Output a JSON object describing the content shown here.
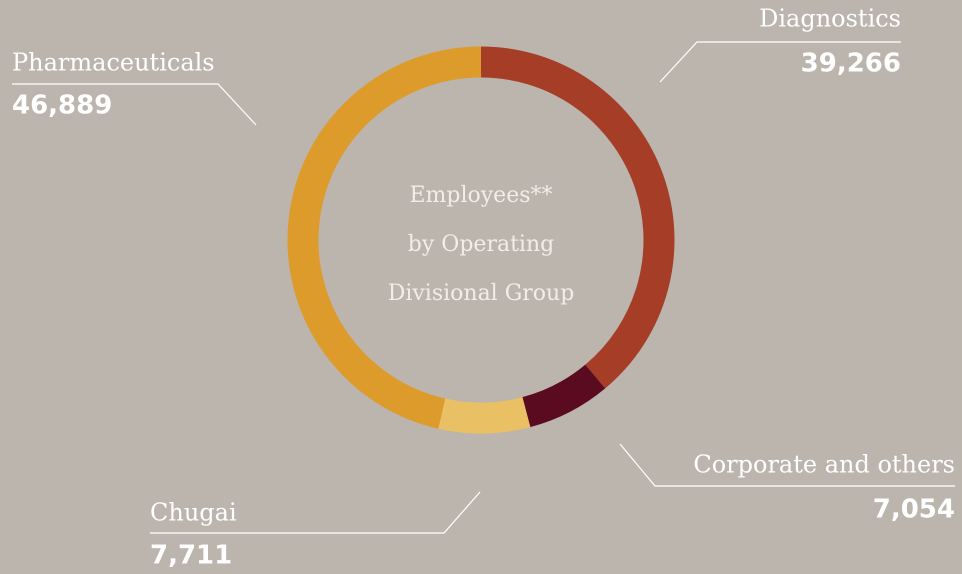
{
  "chart_data": {
    "type": "donut",
    "center_text": [
      "Employees**",
      "by Operating",
      "Divisional Group"
    ],
    "categories": [
      "Diagnostics",
      "Corporate and others",
      "Chugai",
      "Pharmaceuticals"
    ],
    "values": [
      39266,
      7054,
      7711,
      46889
    ],
    "value_labels": [
      "39,266",
      "7,054",
      "7,711",
      "46,889"
    ],
    "colors": [
      "#a63d27",
      "#5b0b1f",
      "#e9c064",
      "#dc9b2b"
    ]
  }
}
